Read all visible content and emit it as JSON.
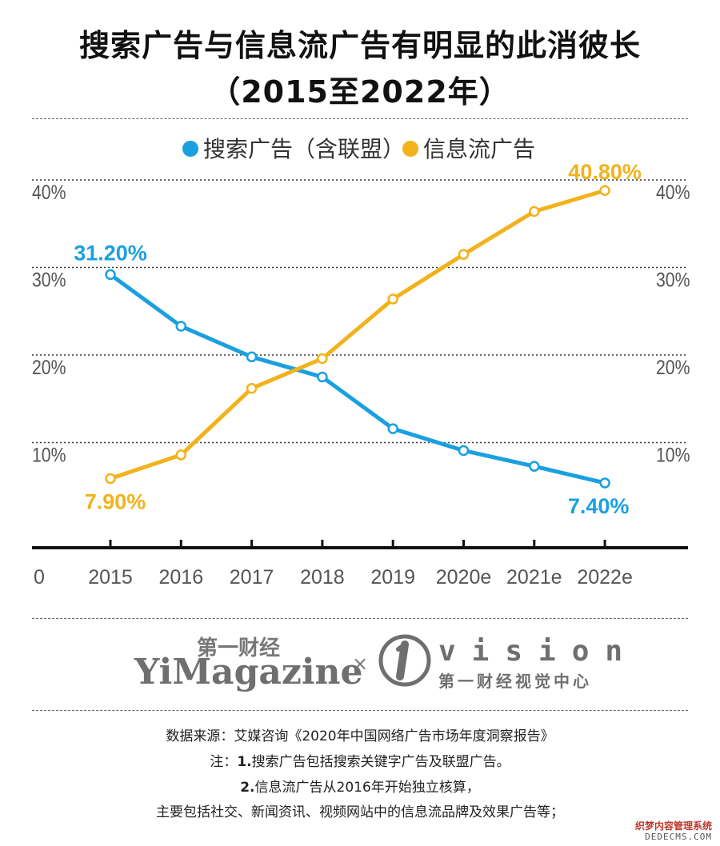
{
  "title_line1": "搜索广告与信息流广告有明显的此消彼长",
  "title_line2": "（2015至2022年）",
  "chart_data": {
    "type": "line",
    "categories": [
      "2015",
      "2016",
      "2017",
      "2018",
      "2019",
      "2020e",
      "2021e",
      "2022e"
    ],
    "series": [
      {
        "name": "搜索广告（含联盟）",
        "color": "#1aa0e0",
        "values": [
          31.2,
          25.3,
          21.8,
          19.5,
          13.6,
          11.1,
          9.3,
          7.4
        ]
      },
      {
        "name": "信息流广告",
        "color": "#f2b21b",
        "values": [
          7.9,
          10.6,
          18.2,
          21.6,
          28.4,
          33.5,
          38.4,
          40.8
        ]
      }
    ],
    "data_labels": [
      {
        "series": 0,
        "index": 0,
        "text": "31.20%"
      },
      {
        "series": 0,
        "index": 7,
        "text": "7.40%"
      },
      {
        "series": 1,
        "index": 0,
        "text": "7.90%"
      },
      {
        "series": 1,
        "index": 7,
        "text": "40.80%"
      }
    ],
    "y_ticks": [
      {
        "value": 0,
        "label": "0"
      },
      {
        "value": 10,
        "label": "10%"
      },
      {
        "value": 20,
        "label": "20%"
      },
      {
        "value": 30,
        "label": "30%"
      },
      {
        "value": 40,
        "label": "40%"
      }
    ],
    "ylim": [
      0,
      45
    ],
    "grid": true,
    "legend_position": "top-center"
  },
  "brand": {
    "cn": "第一财经",
    "en": "YiMagazine",
    "cross": "×",
    "vision": "vision",
    "vision_cn": "第一财经视觉中心"
  },
  "notes": {
    "source": "数据来源：艾媒咨询《2020年中国网络广告市场年度洞察报告》",
    "note1_prefix": "注：",
    "note1_num": "1.",
    "note1_text": "搜索广告包括搜索关键字广告及联盟广告。",
    "note2_num": "2.",
    "note2_text": "信息流广告从2016年开始独立核算，",
    "note3_text": "主要包括社交、新闻资讯、视频网站中的信息流品牌及效果广告等；"
  },
  "watermark": {
    "line1": "织梦内容管理系统",
    "line2": "DEDECMS.COM"
  }
}
